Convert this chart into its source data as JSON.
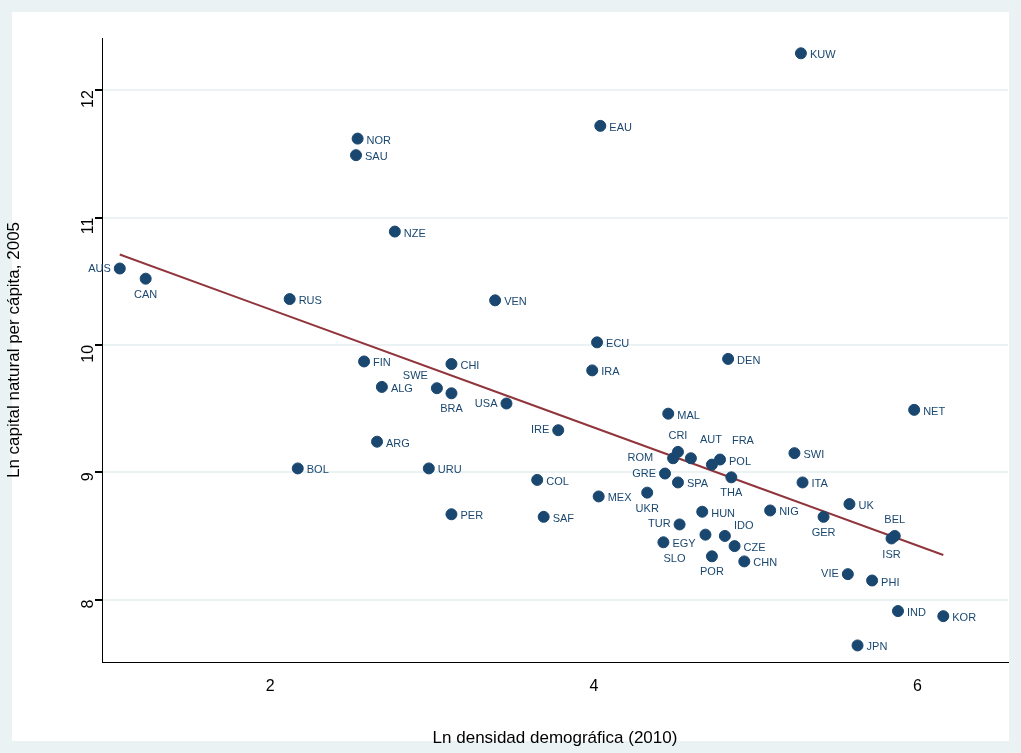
{
  "chart_data": {
    "type": "scatter",
    "xlabel": "Ln densidad demográfica (2010)",
    "ylabel": "Ln capital natural per cápita, 2005",
    "xlim": [
      0.96,
      6.56
    ],
    "ylim": [
      7.51,
      12.41
    ],
    "xticks": [
      2,
      4,
      6
    ],
    "yticks": [
      8,
      9,
      10,
      11,
      12
    ],
    "grid": "y",
    "legend": false,
    "marker": "circle",
    "series": [
      {
        "type": "scatter",
        "color": "#1a476f",
        "x": [
          1.07,
          1.23,
          2.12,
          2.54,
          2.53,
          2.77,
          2.58,
          2.69,
          2.66,
          2.17,
          2.98,
          3.12,
          3.03,
          3.12,
          3.12,
          3.39,
          3.46,
          3.65,
          3.69,
          3.78,
          4.03,
          4.02,
          3.99,
          4.04,
          5.28,
          4.83,
          4.46,
          4.52,
          4.49,
          4.44,
          4.52,
          4.33,
          4.6,
          4.78,
          4.73,
          4.85,
          4.67,
          4.53,
          4.43,
          4.69,
          4.81,
          4.87,
          4.73,
          4.93,
          5.24,
          5.29,
          5.09,
          5.42,
          5.58,
          5.98,
          5.86,
          5.84,
          5.57,
          5.72,
          5.88,
          6.16,
          5.63
        ],
        "values": [
          10.6,
          10.52,
          10.36,
          11.62,
          11.49,
          10.89,
          9.87,
          9.67,
          9.24,
          9.03,
          9.03,
          9.85,
          9.66,
          9.62,
          8.67,
          10.35,
          9.54,
          8.94,
          8.65,
          9.33,
          8.81,
          10.02,
          9.8,
          11.72,
          12.29,
          9.89,
          9.46,
          9.16,
          9.11,
          8.99,
          8.92,
          8.84,
          9.11,
          9.1,
          9.06,
          8.96,
          8.69,
          8.59,
          8.45,
          8.51,
          8.5,
          8.42,
          8.34,
          8.3,
          9.15,
          8.92,
          8.7,
          8.65,
          8.75,
          9.49,
          8.5,
          8.48,
          8.2,
          8.15,
          7.91,
          7.87,
          7.64
        ]
      },
      {
        "type": "line",
        "color": "#90353b",
        "marker": "none",
        "x": [
          1.07,
          6.16
        ],
        "values": [
          10.71,
          8.35
        ]
      }
    ],
    "annotations": [
      {
        "text": "AUS",
        "x": 1.07,
        "y": 10.6
      },
      {
        "text": "CAN",
        "x": 1.23,
        "y": 10.52
      },
      {
        "text": "RUS",
        "x": 2.12,
        "y": 10.36
      },
      {
        "text": "NOR",
        "x": 2.54,
        "y": 11.62
      },
      {
        "text": "SAU",
        "x": 2.53,
        "y": 11.49
      },
      {
        "text": "NZE",
        "x": 2.77,
        "y": 10.89
      },
      {
        "text": "FIN",
        "x": 2.58,
        "y": 9.87
      },
      {
        "text": "ALG",
        "x": 2.69,
        "y": 9.67
      },
      {
        "text": "ARG",
        "x": 2.66,
        "y": 9.24
      },
      {
        "text": "BOL",
        "x": 2.17,
        "y": 9.03
      },
      {
        "text": "URU",
        "x": 2.98,
        "y": 9.03
      },
      {
        "text": "CHI",
        "x": 3.12,
        "y": 9.85
      },
      {
        "text": "SWE",
        "x": 3.03,
        "y": 9.66
      },
      {
        "text": "BRA",
        "x": 3.12,
        "y": 9.62
      },
      {
        "text": "PER",
        "x": 3.12,
        "y": 8.67
      },
      {
        "text": "VEN",
        "x": 3.39,
        "y": 10.35
      },
      {
        "text": "USA",
        "x": 3.46,
        "y": 9.54
      },
      {
        "text": "COL",
        "x": 3.65,
        "y": 8.94
      },
      {
        "text": "SAF",
        "x": 3.69,
        "y": 8.65
      },
      {
        "text": "IRE",
        "x": 3.78,
        "y": 9.33
      },
      {
        "text": "MEX",
        "x": 4.03,
        "y": 8.81
      },
      {
        "text": "ECU",
        "x": 4.02,
        "y": 10.02
      },
      {
        "text": "IRA",
        "x": 3.99,
        "y": 9.8
      },
      {
        "text": "EAU",
        "x": 4.04,
        "y": 11.72
      },
      {
        "text": "KUW",
        "x": 5.28,
        "y": 12.29
      },
      {
        "text": "DEN",
        "x": 4.83,
        "y": 9.89
      },
      {
        "text": "MAL",
        "x": 4.46,
        "y": 9.46
      },
      {
        "text": "CRI",
        "x": 4.52,
        "y": 9.16
      },
      {
        "text": "ROM",
        "x": 4.49,
        "y": 9.11
      },
      {
        "text": "GRE",
        "x": 4.44,
        "y": 8.99
      },
      {
        "text": "SPA",
        "x": 4.52,
        "y": 8.92
      },
      {
        "text": "UKR",
        "x": 4.33,
        "y": 8.84
      },
      {
        "text": "AUT",
        "x": 4.6,
        "y": 9.11
      },
      {
        "text": "POL",
        "x": 4.78,
        "y": 9.1
      },
      {
        "text": "FRA",
        "x": 4.73,
        "y": 9.06
      },
      {
        "text": "THA",
        "x": 4.85,
        "y": 8.96
      },
      {
        "text": "HUN",
        "x": 4.67,
        "y": 8.69
      },
      {
        "text": "TUR",
        "x": 4.53,
        "y": 8.59
      },
      {
        "text": "EGY",
        "x": 4.43,
        "y": 8.45
      },
      {
        "text": "SLO",
        "x": 4.69,
        "y": 8.51
      },
      {
        "text": "IDO",
        "x": 4.81,
        "y": 8.5
      },
      {
        "text": "CZE",
        "x": 4.87,
        "y": 8.42
      },
      {
        "text": "POR",
        "x": 4.73,
        "y": 8.34
      },
      {
        "text": "CHN",
        "x": 4.93,
        "y": 8.3
      },
      {
        "text": "SWI",
        "x": 5.24,
        "y": 9.15
      },
      {
        "text": "ITA",
        "x": 5.29,
        "y": 8.92
      },
      {
        "text": "NIG",
        "x": 5.09,
        "y": 8.7
      },
      {
        "text": "GER",
        "x": 5.42,
        "y": 8.65
      },
      {
        "text": "UK",
        "x": 5.58,
        "y": 8.75
      },
      {
        "text": "NET",
        "x": 5.98,
        "y": 9.49
      },
      {
        "text": "BEL",
        "x": 5.86,
        "y": 8.5
      },
      {
        "text": "ISR",
        "x": 5.84,
        "y": 8.48
      },
      {
        "text": "VIE",
        "x": 5.57,
        "y": 8.2
      },
      {
        "text": "PHI",
        "x": 5.72,
        "y": 8.15
      },
      {
        "text": "IND",
        "x": 5.88,
        "y": 7.91
      },
      {
        "text": "KOR",
        "x": 6.16,
        "y": 7.87
      },
      {
        "text": "JPN",
        "x": 5.63,
        "y": 7.64
      }
    ]
  }
}
